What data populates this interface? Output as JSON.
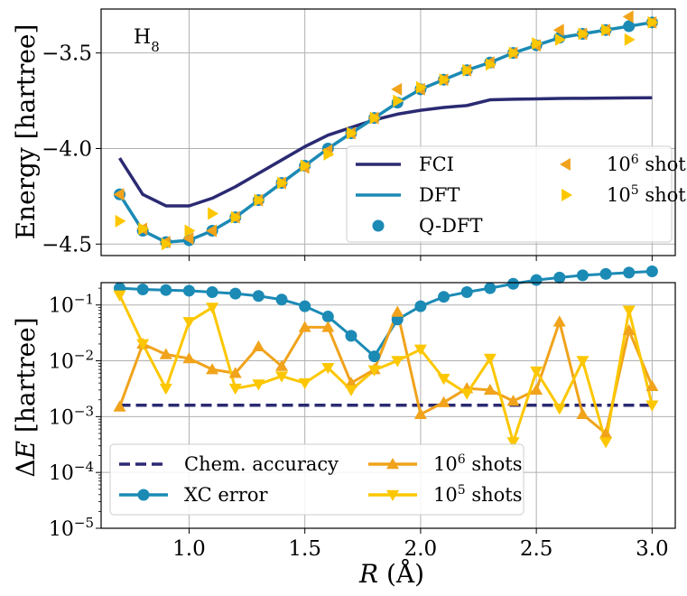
{
  "chart_data": [
    {
      "type": "line",
      "annotation": {
        "base": "H",
        "sub": "8"
      },
      "ylabel": "Energy [hartree]",
      "xlim": [
        0.62,
        3.1
      ],
      "ylim": [
        -4.56,
        -3.27
      ],
      "yticks": [
        {
          "v": -3.5,
          "label": "−3.5"
        },
        {
          "v": -4.0,
          "label": "−4.0"
        },
        {
          "v": -4.5,
          "label": "−4.5"
        }
      ],
      "xticks": [
        1.0,
        1.5,
        2.0,
        2.5,
        3.0
      ],
      "grid": true,
      "legend_position": "lower-right",
      "series": [
        {
          "name": "FCI",
          "style": "line",
          "color": "#2b2a72",
          "x": [
            0.7,
            0.8,
            0.9,
            1.0,
            1.1,
            1.2,
            1.3,
            1.4,
            1.5,
            1.6,
            1.7,
            1.8,
            1.9,
            2.0,
            2.1,
            2.2,
            2.3,
            2.4,
            2.5,
            2.6,
            2.7,
            2.8,
            2.9,
            3.0
          ],
          "y": [
            -4.05,
            -4.24,
            -4.3,
            -4.3,
            -4.26,
            -4.2,
            -4.13,
            -4.06,
            -3.99,
            -3.93,
            -3.89,
            -3.85,
            -3.82,
            -3.8,
            -3.785,
            -3.775,
            -3.745,
            -3.742,
            -3.74,
            -3.738,
            -3.737,
            -3.736,
            -3.735,
            -3.734
          ]
        },
        {
          "name": "DFT",
          "style": "line",
          "color": "#1b8ab5",
          "x": [
            0.7,
            0.8,
            0.9,
            1.0,
            1.1,
            1.2,
            1.3,
            1.4,
            1.5,
            1.6,
            1.7,
            1.8,
            1.9,
            2.0,
            2.1,
            2.2,
            2.3,
            2.4,
            2.5,
            2.6,
            2.7,
            2.8,
            2.9,
            3.0
          ],
          "y": [
            -4.24,
            -4.43,
            -4.49,
            -4.48,
            -4.43,
            -4.36,
            -4.27,
            -4.18,
            -4.09,
            -4.0,
            -3.92,
            -3.84,
            -3.76,
            -3.69,
            -3.64,
            -3.59,
            -3.55,
            -3.5,
            -3.46,
            -3.42,
            -3.4,
            -3.38,
            -3.36,
            -3.34
          ]
        },
        {
          "name": "Q-DFT",
          "style": "circle",
          "color": "#1b8ab5",
          "x": [
            0.7,
            0.8,
            0.9,
            1.0,
            1.1,
            1.2,
            1.3,
            1.4,
            1.5,
            1.6,
            1.7,
            1.8,
            1.9,
            2.0,
            2.1,
            2.2,
            2.3,
            2.4,
            2.5,
            2.6,
            2.7,
            2.8,
            2.9,
            3.0
          ],
          "y": [
            -4.24,
            -4.43,
            -4.49,
            -4.48,
            -4.43,
            -4.36,
            -4.27,
            -4.18,
            -4.09,
            -4.0,
            -3.92,
            -3.84,
            -3.76,
            -3.69,
            -3.64,
            -3.59,
            -3.55,
            -3.5,
            -3.46,
            -3.42,
            -3.4,
            -3.38,
            -3.36,
            -3.34
          ]
        },
        {
          "name": "10⁶ shots",
          "base": "10",
          "exp": "6",
          "style": "tri-left",
          "color": "#f0a31b",
          "x": [
            0.7,
            0.8,
            0.9,
            1.0,
            1.1,
            1.2,
            1.3,
            1.4,
            1.5,
            1.6,
            1.7,
            1.8,
            1.9,
            2.0,
            2.1,
            2.2,
            2.3,
            2.4,
            2.5,
            2.6,
            2.7,
            2.8,
            2.9,
            3.0
          ],
          "y": [
            -4.24,
            -4.42,
            -4.49,
            -4.47,
            -4.43,
            -4.36,
            -4.27,
            -4.18,
            -4.1,
            -4.01,
            -3.92,
            -3.84,
            -3.69,
            -3.69,
            -3.64,
            -3.59,
            -3.55,
            -3.5,
            -3.46,
            -3.38,
            -3.4,
            -3.38,
            -3.31,
            -3.34
          ]
        },
        {
          "name": "10⁵ shots",
          "base": "10",
          "exp": "5",
          "style": "tri-right",
          "color": "#fcc700",
          "x": [
            0.7,
            0.8,
            0.9,
            1.0,
            1.1,
            1.2,
            1.3,
            1.4,
            1.5,
            1.6,
            1.7,
            1.8,
            1.9,
            2.0,
            2.1,
            2.2,
            2.3,
            2.4,
            2.5,
            2.6,
            2.7,
            2.8,
            2.9,
            3.0
          ],
          "y": [
            -4.38,
            -4.42,
            -4.5,
            -4.43,
            -4.34,
            -4.36,
            -4.27,
            -4.18,
            -4.09,
            -4.03,
            -3.92,
            -3.84,
            -3.75,
            -3.68,
            -3.64,
            -3.59,
            -3.56,
            -3.5,
            -3.45,
            -3.43,
            -3.4,
            -3.38,
            -3.43,
            -3.34
          ]
        }
      ],
      "legend_items": [
        {
          "series": 0,
          "col": 0,
          "row": 0
        },
        {
          "series": 1,
          "col": 0,
          "row": 1
        },
        {
          "series": 2,
          "col": 0,
          "row": 2
        },
        {
          "series": 3,
          "col": 1,
          "row": 0
        },
        {
          "series": 4,
          "col": 1,
          "row": 1
        }
      ]
    },
    {
      "type": "line",
      "scale": "log",
      "ylabel": {
        "prefix": "Δ",
        "italic": "E",
        "suffix": " [hartree]"
      },
      "xlabel": {
        "italic": "R",
        "suffix": " (Å)"
      },
      "xlim": [
        0.62,
        3.1
      ],
      "ylim_exp": [
        -5,
        -0.6
      ],
      "yticks": [
        {
          "v": -1,
          "base": "10",
          "exp": "−1"
        },
        {
          "v": -2,
          "base": "10",
          "exp": "−2"
        },
        {
          "v": -3,
          "base": "10",
          "exp": "−3"
        },
        {
          "v": -4,
          "base": "10",
          "exp": "−4"
        },
        {
          "v": -5,
          "base": "10",
          "exp": "−5"
        }
      ],
      "xticks": [
        {
          "v": 1.0,
          "label": "1.0"
        },
        {
          "v": 1.5,
          "label": "1.5"
        },
        {
          "v": 2.0,
          "label": "2.0"
        },
        {
          "v": 2.5,
          "label": "2.5"
        },
        {
          "v": 3.0,
          "label": "3.0"
        }
      ],
      "grid": true,
      "legend_position": "lower-left",
      "series": [
        {
          "name": "Chem. accuracy",
          "style": "dashed",
          "color": "#2b2a72",
          "x": [
            0.7,
            3.0
          ],
          "y": [
            0.0016,
            0.0016
          ]
        },
        {
          "name": "XC error",
          "style": "line-circle",
          "color": "#1b8ab5",
          "x": [
            0.7,
            0.8,
            0.9,
            1.0,
            1.1,
            1.2,
            1.3,
            1.4,
            1.5,
            1.6,
            1.7,
            1.8,
            1.9,
            2.0,
            2.1,
            2.2,
            2.3,
            2.4,
            2.5,
            2.6,
            2.7,
            2.8,
            2.9,
            3.0
          ],
          "y": [
            0.2,
            0.19,
            0.185,
            0.18,
            0.17,
            0.16,
            0.145,
            0.125,
            0.095,
            0.062,
            0.028,
            0.012,
            0.055,
            0.095,
            0.14,
            0.17,
            0.2,
            0.24,
            0.28,
            0.31,
            0.34,
            0.36,
            0.38,
            0.4
          ]
        },
        {
          "name": "10⁶ shots",
          "base": "10",
          "exp": "6",
          "style": "line-tri-up",
          "color": "#f0a31b",
          "x": [
            0.7,
            0.8,
            0.9,
            1.0,
            1.1,
            1.2,
            1.3,
            1.4,
            1.5,
            1.6,
            1.7,
            1.8,
            1.9,
            2.0,
            2.1,
            2.2,
            2.3,
            2.4,
            2.5,
            2.6,
            2.7,
            2.8,
            2.9,
            3.0
          ],
          "y": [
            0.0015,
            0.02,
            0.013,
            0.011,
            0.007,
            0.006,
            0.018,
            0.008,
            0.04,
            0.04,
            0.004,
            0.007,
            0.075,
            0.0011,
            0.0018,
            0.0032,
            0.003,
            0.0019,
            0.003,
            0.05,
            0.0011,
            0.0005,
            0.035,
            0.0035
          ]
        },
        {
          "name": "10⁵ shots",
          "base": "10",
          "exp": "5",
          "style": "line-tri-down",
          "color": "#fcc700",
          "x": [
            0.7,
            0.8,
            0.9,
            1.0,
            1.1,
            1.2,
            1.3,
            1.4,
            1.5,
            1.6,
            1.7,
            1.8,
            1.9,
            2.0,
            2.1,
            2.2,
            2.3,
            2.4,
            2.5,
            2.6,
            2.7,
            2.8,
            2.9,
            3.0
          ],
          "y": [
            0.15,
            0.02,
            0.0032,
            0.05,
            0.09,
            0.0032,
            0.0038,
            0.0053,
            0.004,
            0.0075,
            0.003,
            0.0068,
            0.01,
            0.016,
            0.0048,
            0.0026,
            0.011,
            0.00035,
            0.0065,
            0.0014,
            0.01,
            0.00035,
            0.08,
            0.0016
          ]
        }
      ],
      "legend_items": [
        {
          "series": 0,
          "col": 0,
          "row": 0
        },
        {
          "series": 1,
          "col": 0,
          "row": 1
        },
        {
          "series": 2,
          "col": 1,
          "row": 0
        },
        {
          "series": 3,
          "col": 1,
          "row": 1
        }
      ]
    }
  ]
}
